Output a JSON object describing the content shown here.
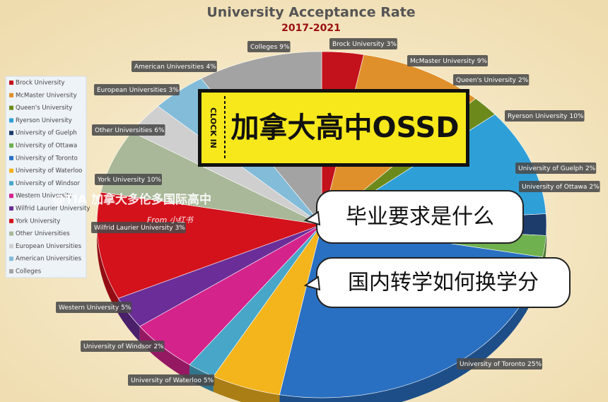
{
  "chart_data": {
    "type": "pie",
    "title": "University Acceptance Rate",
    "subtitle": "2017-2021",
    "categories": [
      "Brock University",
      "McMaster University",
      "Queen's University",
      "Ryerson University",
      "University of Guelph",
      "University of Ottawa",
      "University of Toronto",
      "University of Waterloo",
      "University of Windsor",
      "Western University",
      "Wilfrid Laurier University",
      "York University",
      "Other Universities",
      "European Universities",
      "American Universities",
      "Colleges"
    ],
    "values": [
      3,
      9,
      2,
      10,
      2,
      2,
      25,
      5,
      2,
      5,
      3,
      10,
      6,
      3,
      4,
      9
    ],
    "value_labels": [
      "3%",
      "9%",
      "2%",
      "10%",
      "2%",
      "2%",
      "25%",
      "5%",
      "2%",
      "5%",
      "3%",
      "10%",
      "6%",
      "3%",
      "4%",
      "9%"
    ],
    "colors": [
      "#c3121b",
      "#e0902a",
      "#6c8a1c",
      "#2f9fd8",
      "#1d3b6b",
      "#6fb04f",
      "#2a70c2",
      "#f3b41c",
      "#48a6c8",
      "#d5238c",
      "#6b2e98",
      "#d3121c",
      "#a9b898",
      "#cfcfcf",
      "#83bcd9",
      "#a3a3a3"
    ],
    "legend": "left"
  },
  "overlay": {
    "banner": "加拿大高中OSSD",
    "banner_tag": "CLOCK IN",
    "callouts": [
      "毕业要求是什么",
      "国内转学如何换学分"
    ],
    "watermark": "@TIA 加拿大多伦多国际高中",
    "source": "From 小红书"
  }
}
